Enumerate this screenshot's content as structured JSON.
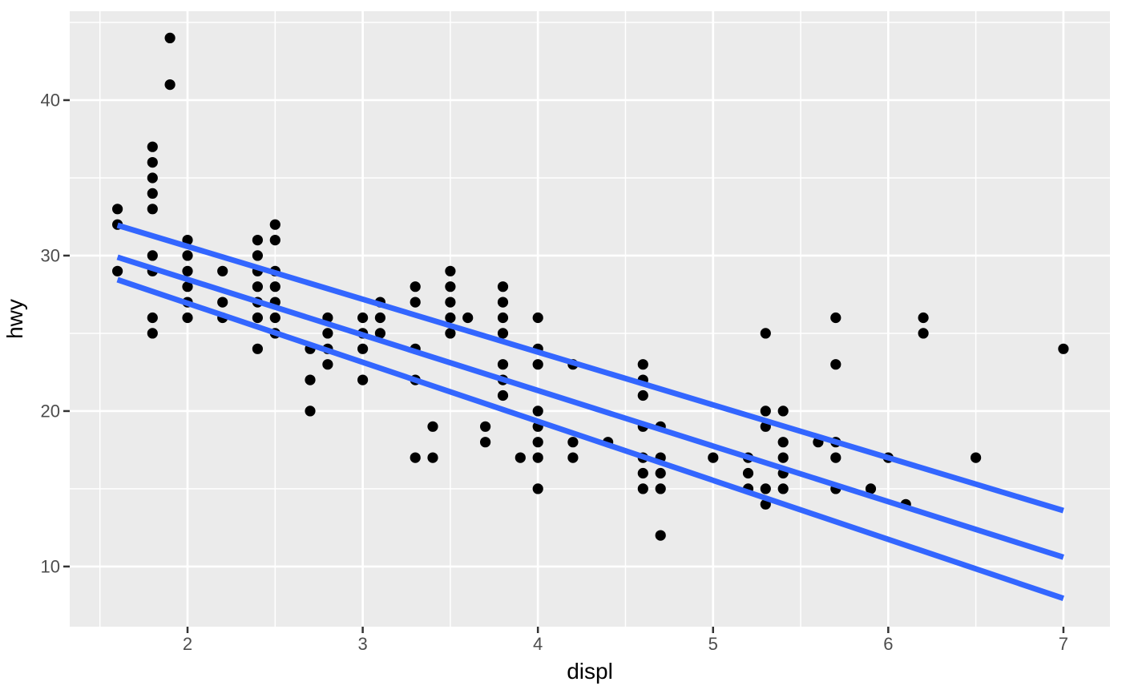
{
  "chart_data": {
    "type": "scatter",
    "title": "",
    "xlabel": "displ",
    "ylabel": "hwy",
    "xlim": [
      1.3275,
      7.2657
    ],
    "ylim": [
      6.13,
      45.72
    ],
    "x_ticks": [
      2,
      3,
      4,
      5,
      6,
      7
    ],
    "y_ticks": [
      10,
      20,
      30,
      40
    ],
    "x_minor_ticks": [
      1.5,
      2.5,
      3.5,
      4.5,
      5.5,
      6.5
    ],
    "y_minor_ticks": [
      15,
      25,
      35,
      45
    ],
    "grid": "on",
    "legend": "none",
    "theme": "ggplot2-grey-panel",
    "marker": {
      "shape": "circle",
      "radius_px": 6.6
    },
    "points": [
      [
        1.6,
        29
      ],
      [
        1.6,
        32
      ],
      [
        1.6,
        33
      ],
      [
        1.8,
        25
      ],
      [
        1.8,
        26
      ],
      [
        1.8,
        29
      ],
      [
        1.8,
        30
      ],
      [
        1.8,
        33
      ],
      [
        1.8,
        34
      ],
      [
        1.8,
        35
      ],
      [
        1.8,
        36
      ],
      [
        1.8,
        37
      ],
      [
        1.9,
        41
      ],
      [
        1.9,
        44
      ],
      [
        2.0,
        26
      ],
      [
        2.0,
        27
      ],
      [
        2.0,
        28
      ],
      [
        2.0,
        29
      ],
      [
        2.0,
        30
      ],
      [
        2.0,
        31
      ],
      [
        2.2,
        26
      ],
      [
        2.2,
        27
      ],
      [
        2.2,
        29
      ],
      [
        2.4,
        24
      ],
      [
        2.4,
        26
      ],
      [
        2.4,
        27
      ],
      [
        2.4,
        28
      ],
      [
        2.4,
        29
      ],
      [
        2.4,
        30
      ],
      [
        2.4,
        31
      ],
      [
        2.5,
        25
      ],
      [
        2.5,
        26
      ],
      [
        2.5,
        27
      ],
      [
        2.5,
        28
      ],
      [
        2.5,
        29
      ],
      [
        2.5,
        31
      ],
      [
        2.5,
        32
      ],
      [
        2.7,
        20
      ],
      [
        2.7,
        22
      ],
      [
        2.7,
        24
      ],
      [
        2.8,
        23
      ],
      [
        2.8,
        24
      ],
      [
        2.8,
        25
      ],
      [
        2.8,
        26
      ],
      [
        3.0,
        22
      ],
      [
        3.0,
        24
      ],
      [
        3.0,
        25
      ],
      [
        3.0,
        26
      ],
      [
        3.1,
        25
      ],
      [
        3.1,
        26
      ],
      [
        3.1,
        27
      ],
      [
        3.3,
        17
      ],
      [
        3.3,
        22
      ],
      [
        3.3,
        24
      ],
      [
        3.3,
        27
      ],
      [
        3.3,
        28
      ],
      [
        3.4,
        17
      ],
      [
        3.4,
        19
      ],
      [
        3.5,
        25
      ],
      [
        3.5,
        26
      ],
      [
        3.5,
        27
      ],
      [
        3.5,
        28
      ],
      [
        3.5,
        29
      ],
      [
        3.6,
        26
      ],
      [
        3.7,
        18
      ],
      [
        3.7,
        19
      ],
      [
        3.8,
        21
      ],
      [
        3.8,
        22
      ],
      [
        3.8,
        23
      ],
      [
        3.8,
        25
      ],
      [
        3.8,
        26
      ],
      [
        3.8,
        27
      ],
      [
        3.8,
        28
      ],
      [
        3.9,
        17
      ],
      [
        4.0,
        15
      ],
      [
        4.0,
        17
      ],
      [
        4.0,
        18
      ],
      [
        4.0,
        19
      ],
      [
        4.0,
        20
      ],
      [
        4.0,
        23
      ],
      [
        4.0,
        24
      ],
      [
        4.0,
        26
      ],
      [
        4.2,
        17
      ],
      [
        4.2,
        18
      ],
      [
        4.2,
        23
      ],
      [
        4.4,
        18
      ],
      [
        4.6,
        15
      ],
      [
        4.6,
        16
      ],
      [
        4.6,
        17
      ],
      [
        4.6,
        19
      ],
      [
        4.6,
        21
      ],
      [
        4.6,
        22
      ],
      [
        4.6,
        23
      ],
      [
        4.7,
        12
      ],
      [
        4.7,
        15
      ],
      [
        4.7,
        16
      ],
      [
        4.7,
        17
      ],
      [
        4.7,
        19
      ],
      [
        5.0,
        17
      ],
      [
        5.2,
        15
      ],
      [
        5.2,
        16
      ],
      [
        5.2,
        17
      ],
      [
        5.3,
        14
      ],
      [
        5.3,
        15
      ],
      [
        5.3,
        19
      ],
      [
        5.3,
        20
      ],
      [
        5.3,
        25
      ],
      [
        5.4,
        15
      ],
      [
        5.4,
        16
      ],
      [
        5.4,
        17
      ],
      [
        5.4,
        18
      ],
      [
        5.4,
        20
      ],
      [
        5.6,
        18
      ],
      [
        5.7,
        15
      ],
      [
        5.7,
        17
      ],
      [
        5.7,
        18
      ],
      [
        5.7,
        23
      ],
      [
        5.7,
        26
      ],
      [
        5.9,
        15
      ],
      [
        6.0,
        17
      ],
      [
        6.1,
        14
      ],
      [
        6.2,
        25
      ],
      [
        6.2,
        26
      ],
      [
        6.5,
        17
      ],
      [
        7.0,
        24
      ]
    ],
    "series": [
      {
        "name": "quantile-line-q75",
        "type": "line",
        "x": [
          1.6,
          7.0
        ],
        "y": [
          31.95,
          13.6
        ]
      },
      {
        "name": "quantile-line-q50",
        "type": "line",
        "x": [
          1.6,
          7.0
        ],
        "y": [
          29.9,
          10.6
        ]
      },
      {
        "name": "quantile-line-q25",
        "type": "line",
        "x": [
          1.6,
          7.0
        ],
        "y": [
          28.45,
          7.95
        ]
      }
    ],
    "colors": {
      "point": "#000000",
      "line": "#3366FF",
      "panel_bg": "#EBEBEB",
      "grid": "#FFFFFF",
      "tick_mark": "#333333",
      "tick_label": "#4D4D4D",
      "axis_title": "#000000",
      "background": "#FFFFFF"
    }
  }
}
